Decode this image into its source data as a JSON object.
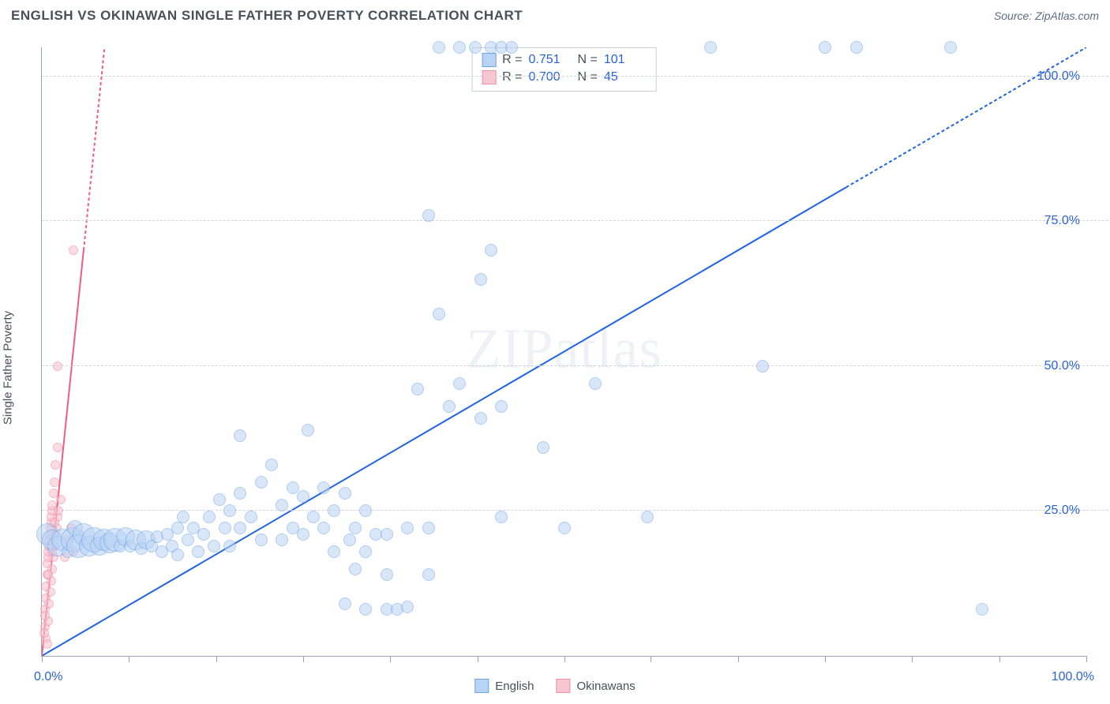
{
  "header": {
    "title": "ENGLISH VS OKINAWAN SINGLE FATHER POVERTY CORRELATION CHART",
    "source": "Source: ZipAtlas.com"
  },
  "chart": {
    "type": "scatter",
    "y_axis_label": "Single Father Poverty",
    "xlim": [
      0,
      100
    ],
    "ylim": [
      0,
      105
    ],
    "x_ticks_pct": [
      0,
      8.3,
      16.7,
      25,
      33.3,
      41.7,
      50,
      58.3,
      66.7,
      75,
      83.3,
      91.7,
      100
    ],
    "y_grid_pct": [
      25,
      50,
      75,
      100
    ],
    "y_tick_labels": [
      "25.0%",
      "50.0%",
      "75.0%",
      "100.0%"
    ],
    "x_lo_label": "0.0%",
    "x_hi_label": "100.0%",
    "background_color": "#ffffff",
    "grid_color": "#d0d6dc",
    "axis_color": "#9aa5b1",
    "ytick_label_color": "#2a63d6",
    "watermark": "ZIPatlas",
    "watermark_color": "#eef1f5",
    "series": [
      {
        "name": "English",
        "fill_color": "#b9d3f4",
        "stroke_color": "#6ea3e8",
        "fill_opacity": 0.55,
        "trend": {
          "x1": 0,
          "y1": 0,
          "x2": 100,
          "y2": 105,
          "solid_until_x": 77,
          "color": "#1f63e6",
          "width": 2
        },
        "stats": {
          "R": "0.751",
          "N": "101"
        },
        "default_r": 8,
        "points": [
          {
            "x": 0.5,
            "y": 21,
            "r": 14
          },
          {
            "x": 1.0,
            "y": 20,
            "r": 13
          },
          {
            "x": 1.5,
            "y": 19,
            "r": 13
          },
          {
            "x": 2.0,
            "y": 20,
            "r": 14
          },
          {
            "x": 2.5,
            "y": 18
          },
          {
            "x": 3.0,
            "y": 20,
            "r": 16
          },
          {
            "x": 3.2,
            "y": 22,
            "r": 10
          },
          {
            "x": 3.5,
            "y": 19,
            "r": 15
          },
          {
            "x": 4.0,
            "y": 21,
            "r": 14
          },
          {
            "x": 4.5,
            "y": 19,
            "r": 13
          },
          {
            "x": 5.0,
            "y": 20,
            "r": 16
          },
          {
            "x": 5.5,
            "y": 19,
            "r": 12
          },
          {
            "x": 6.0,
            "y": 20,
            "r": 14
          },
          {
            "x": 6.5,
            "y": 19.5,
            "r": 13
          },
          {
            "x": 7.0,
            "y": 20,
            "r": 15
          },
          {
            "x": 7.5,
            "y": 19
          },
          {
            "x": 8.0,
            "y": 20.5,
            "r": 12
          },
          {
            "x": 8.5,
            "y": 19
          },
          {
            "x": 9.0,
            "y": 20,
            "r": 13
          },
          {
            "x": 9.5,
            "y": 18.5
          },
          {
            "x": 10.0,
            "y": 20,
            "r": 12
          },
          {
            "x": 10.5,
            "y": 19
          },
          {
            "x": 11.0,
            "y": 20.5
          },
          {
            "x": 11.5,
            "y": 18
          },
          {
            "x": 12.0,
            "y": 21
          },
          {
            "x": 12.5,
            "y": 19
          },
          {
            "x": 13.0,
            "y": 22
          },
          {
            "x": 13.0,
            "y": 17.5
          },
          {
            "x": 13.5,
            "y": 24
          },
          {
            "x": 14.0,
            "y": 20
          },
          {
            "x": 14.5,
            "y": 22
          },
          {
            "x": 15.0,
            "y": 18
          },
          {
            "x": 15.5,
            "y": 21
          },
          {
            "x": 16.0,
            "y": 24
          },
          {
            "x": 16.5,
            "y": 19
          },
          {
            "x": 17.0,
            "y": 27
          },
          {
            "x": 17.5,
            "y": 22
          },
          {
            "x": 18.0,
            "y": 25
          },
          {
            "x": 18.0,
            "y": 19
          },
          {
            "x": 19.0,
            "y": 28
          },
          {
            "x": 19.0,
            "y": 22
          },
          {
            "x": 19.0,
            "y": 38
          },
          {
            "x": 20.0,
            "y": 24
          },
          {
            "x": 21.0,
            "y": 30
          },
          {
            "x": 21.0,
            "y": 20
          },
          {
            "x": 22.0,
            "y": 33
          },
          {
            "x": 23.0,
            "y": 26
          },
          {
            "x": 23.0,
            "y": 20
          },
          {
            "x": 24.0,
            "y": 29
          },
          {
            "x": 24.0,
            "y": 22
          },
          {
            "x": 25.0,
            "y": 27.5
          },
          {
            "x": 25.0,
            "y": 21
          },
          {
            "x": 25.5,
            "y": 39
          },
          {
            "x": 26.0,
            "y": 24
          },
          {
            "x": 27.0,
            "y": 29
          },
          {
            "x": 27.0,
            "y": 22
          },
          {
            "x": 28.0,
            "y": 25
          },
          {
            "x": 28.0,
            "y": 18
          },
          {
            "x": 29.0,
            "y": 28
          },
          {
            "x": 29.5,
            "y": 20
          },
          {
            "x": 29.0,
            "y": 9
          },
          {
            "x": 30.0,
            "y": 22
          },
          {
            "x": 30.0,
            "y": 15
          },
          {
            "x": 31.0,
            "y": 25
          },
          {
            "x": 31.0,
            "y": 18
          },
          {
            "x": 31.0,
            "y": 8
          },
          {
            "x": 32.0,
            "y": 21
          },
          {
            "x": 33.0,
            "y": 8
          },
          {
            "x": 33.0,
            "y": 14
          },
          {
            "x": 33.0,
            "y": 21
          },
          {
            "x": 34.0,
            "y": 8
          },
          {
            "x": 35.0,
            "y": 8.5
          },
          {
            "x": 35.0,
            "y": 22
          },
          {
            "x": 36.0,
            "y": 46
          },
          {
            "x": 37.0,
            "y": 14
          },
          {
            "x": 37.0,
            "y": 22
          },
          {
            "x": 37.0,
            "y": 76
          },
          {
            "x": 38.0,
            "y": 59
          },
          {
            "x": 38.0,
            "y": 105
          },
          {
            "x": 39.0,
            "y": 43
          },
          {
            "x": 40.0,
            "y": 105
          },
          {
            "x": 40.0,
            "y": 47
          },
          {
            "x": 41.5,
            "y": 105
          },
          {
            "x": 42.0,
            "y": 65
          },
          {
            "x": 42.0,
            "y": 41
          },
          {
            "x": 43.0,
            "y": 105
          },
          {
            "x": 43.0,
            "y": 70
          },
          {
            "x": 44.0,
            "y": 105
          },
          {
            "x": 44.0,
            "y": 43
          },
          {
            "x": 44.0,
            "y": 24
          },
          {
            "x": 45.0,
            "y": 105
          },
          {
            "x": 48.0,
            "y": 36
          },
          {
            "x": 50.0,
            "y": 22
          },
          {
            "x": 53.0,
            "y": 47
          },
          {
            "x": 58.0,
            "y": 24
          },
          {
            "x": 64.0,
            "y": 105
          },
          {
            "x": 69.0,
            "y": 50
          },
          {
            "x": 75.0,
            "y": 105
          },
          {
            "x": 78.0,
            "y": 105
          },
          {
            "x": 87.0,
            "y": 105
          },
          {
            "x": 90.0,
            "y": 8
          }
        ]
      },
      {
        "name": "Okinawans",
        "fill_color": "#f7c6d1",
        "stroke_color": "#ef8fa8",
        "fill_opacity": 0.6,
        "trend": {
          "x1": 0,
          "y1": 0,
          "x2": 6,
          "y2": 105,
          "solid_until_x": 4,
          "color": "#ef5d85",
          "width": 2
        },
        "stats": {
          "R": "0.700",
          "N": "45"
        },
        "default_r": 6,
        "points": [
          {
            "x": 0.3,
            "y": 5
          },
          {
            "x": 0.3,
            "y": 8
          },
          {
            "x": 0.4,
            "y": 10
          },
          {
            "x": 0.4,
            "y": 12
          },
          {
            "x": 0.5,
            "y": 14
          },
          {
            "x": 0.5,
            "y": 16
          },
          {
            "x": 0.6,
            "y": 17
          },
          {
            "x": 0.6,
            "y": 18
          },
          {
            "x": 0.7,
            "y": 19
          },
          {
            "x": 0.7,
            "y": 20
          },
          {
            "x": 0.8,
            "y": 21
          },
          {
            "x": 0.8,
            "y": 22
          },
          {
            "x": 0.9,
            "y": 23
          },
          {
            "x": 0.9,
            "y": 24
          },
          {
            "x": 1.0,
            "y": 25
          },
          {
            "x": 1.0,
            "y": 26
          },
          {
            "x": 1.1,
            "y": 28
          },
          {
            "x": 1.2,
            "y": 30
          },
          {
            "x": 1.3,
            "y": 33
          },
          {
            "x": 1.5,
            "y": 36
          },
          {
            "x": 1.5,
            "y": 50
          },
          {
            "x": 0.4,
            "y": 3
          },
          {
            "x": 0.5,
            "y": 2
          },
          {
            "x": 0.6,
            "y": 6
          },
          {
            "x": 0.7,
            "y": 9
          },
          {
            "x": 0.8,
            "y": 11
          },
          {
            "x": 0.9,
            "y": 13
          },
          {
            "x": 1.0,
            "y": 15
          },
          {
            "x": 1.1,
            "y": 17
          },
          {
            "x": 1.2,
            "y": 19
          },
          {
            "x": 1.3,
            "y": 21
          },
          {
            "x": 1.4,
            "y": 22
          },
          {
            "x": 1.5,
            "y": 24
          },
          {
            "x": 1.6,
            "y": 25
          },
          {
            "x": 1.8,
            "y": 27
          },
          {
            "x": 2.2,
            "y": 17
          },
          {
            "x": 2.5,
            "y": 20
          },
          {
            "x": 2.8,
            "y": 22
          },
          {
            "x": 3.0,
            "y": 18
          },
          {
            "x": 3.0,
            "y": 70
          },
          {
            "x": 0.2,
            "y": 4
          },
          {
            "x": 0.3,
            "y": 7
          },
          {
            "x": 0.6,
            "y": 14
          },
          {
            "x": 1.0,
            "y": 18
          },
          {
            "x": 1.2,
            "y": 23
          }
        ]
      }
    ],
    "legend": {
      "items": [
        {
          "label": "English",
          "fill": "#b9d3f4",
          "stroke": "#6ea3e8"
        },
        {
          "label": "Okinawans",
          "fill": "#f7c6d1",
          "stroke": "#ef8fa8"
        }
      ]
    }
  }
}
